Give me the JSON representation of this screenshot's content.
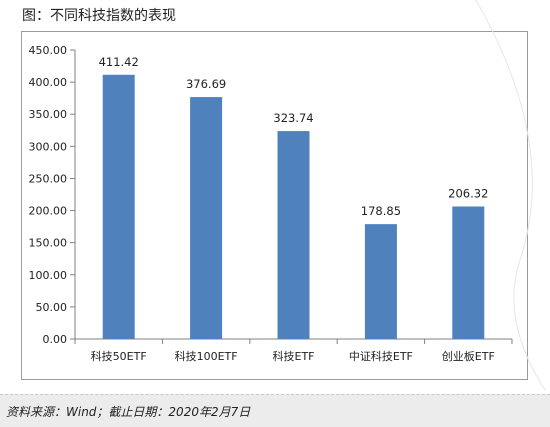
{
  "figure": {
    "title": "图：不同科技指数的表现"
  },
  "footer": {
    "source": "资料来源：Wind；截止日期：2020年2月7日"
  },
  "colors": {
    "bar": "#4f81bd",
    "axis": "#808080",
    "footer_bg": "#ececec"
  },
  "chart_data": {
    "type": "bar",
    "title": "",
    "xlabel": "",
    "ylabel": "",
    "categories": [
      "科技50ETF",
      "科技100ETF",
      "科技ETF",
      "中证科技ETF",
      "创业板ETF"
    ],
    "values": [
      411.42,
      376.69,
      323.74,
      178.85,
      206.32
    ],
    "data_labels": [
      "411.42",
      "376.69",
      "323.74",
      "178.85",
      "206.32"
    ],
    "ylim": [
      0,
      450
    ],
    "yticks": [
      0,
      50,
      100,
      150,
      200,
      250,
      300,
      350,
      400,
      450
    ],
    "ytick_labels": [
      "0.00",
      "50.00",
      "100.00",
      "150.00",
      "200.00",
      "250.00",
      "300.00",
      "350.00",
      "400.00",
      "450.00"
    ],
    "grid": false,
    "legend": "none"
  }
}
